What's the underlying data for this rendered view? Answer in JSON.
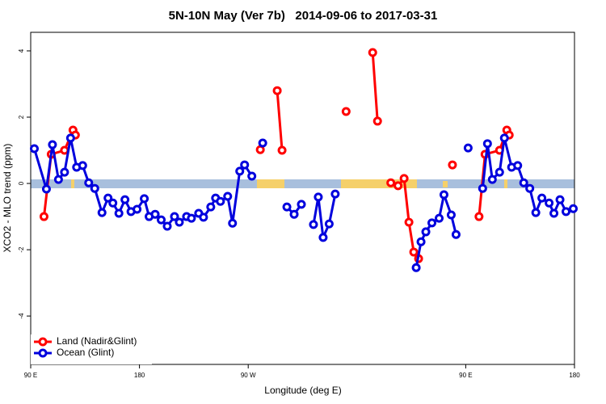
{
  "chart_data": {
    "type": "line",
    "title": "5N-10N May (Ver 7b)   2014-09-06 to 2017-03-31",
    "xlabel": "Longitude (deg E)",
    "ylabel": "XCO2 - MLO trend (ppm)",
    "xlim": [
      90,
      540
    ],
    "ylim": [
      -5.46,
      4.56
    ],
    "xticks": [
      {
        "value": 90,
        "label": "90 E"
      },
      180,
      {
        "value": 270,
        "label": "90 W"
      },
      {
        "value": 450,
        "label": "90 E"
      },
      {
        "value": 540,
        "label": "180"
      }
    ],
    "yticks": [
      4,
      2,
      0,
      -2,
      -4
    ],
    "legend": "bottom-left",
    "series": [
      {
        "name": "Land (Nadir&Glint)",
        "color": "#ff0000",
        "x": [
          101,
          107,
          118,
          125,
          127,
          null,
          280,
          null,
          294,
          298,
          null,
          351,
          null,
          373,
          377,
          null,
          388,
          394,
          399,
          403,
          407,
          411,
          null,
          439,
          null,
          461,
          466,
          478,
          484,
          486
        ],
        "values": [
          -1.0,
          0.88,
          1.0,
          1.61,
          1.46,
          null,
          1.02,
          null,
          2.8,
          1.0,
          null,
          2.17,
          null,
          3.95,
          1.88,
          null,
          0.02,
          -0.07,
          0.15,
          -1.17,
          -2.07,
          -2.27,
          null,
          0.56,
          null,
          -1.0,
          0.88,
          1.0,
          1.61,
          1.46
        ]
      },
      {
        "name": "Ocean (Glint)",
        "color": "#0000dd",
        "x": [
          93,
          103,
          108,
          113,
          118,
          123,
          128,
          133,
          138,
          143,
          149,
          154,
          158,
          163,
          168,
          173,
          178,
          184,
          188,
          193,
          198,
          203,
          209,
          213,
          219,
          223,
          229,
          233,
          239,
          243,
          247,
          253,
          257,
          263,
          267,
          273,
          null,
          282,
          null,
          302,
          308,
          314,
          null,
          324,
          328,
          332,
          337,
          342,
          null,
          409,
          413,
          417,
          422,
          428,
          432,
          438,
          442,
          null,
          452,
          null,
          464,
          468,
          472,
          478,
          482,
          488,
          493,
          498,
          503,
          508,
          513,
          519,
          523,
          528,
          533,
          539
        ],
        "values": [
          1.05,
          -0.17,
          1.17,
          0.12,
          0.34,
          1.37,
          0.49,
          0.54,
          0.02,
          -0.15,
          -0.88,
          -0.44,
          -0.59,
          -0.9,
          -0.49,
          -0.85,
          -0.78,
          -0.46,
          -1.0,
          -0.93,
          -1.1,
          -1.29,
          -1.0,
          -1.17,
          -1.0,
          -1.05,
          -0.9,
          -1.02,
          -0.71,
          -0.44,
          -0.54,
          -0.39,
          -1.2,
          0.37,
          0.56,
          0.22,
          null,
          1.22,
          null,
          -0.71,
          -0.93,
          -0.63,
          null,
          -1.24,
          -0.41,
          -1.63,
          -1.22,
          -0.32,
          null,
          -2.54,
          -1.76,
          -1.46,
          -1.19,
          -1.05,
          -0.34,
          -0.95,
          -1.54,
          null,
          1.07,
          null,
          -0.15,
          1.2,
          0.12,
          0.34,
          1.37,
          0.49,
          0.54,
          0.02,
          -0.15,
          -0.88,
          -0.44,
          -0.59,
          -0.9,
          -0.49,
          -0.85,
          -0.76
        ]
      }
    ]
  }
}
